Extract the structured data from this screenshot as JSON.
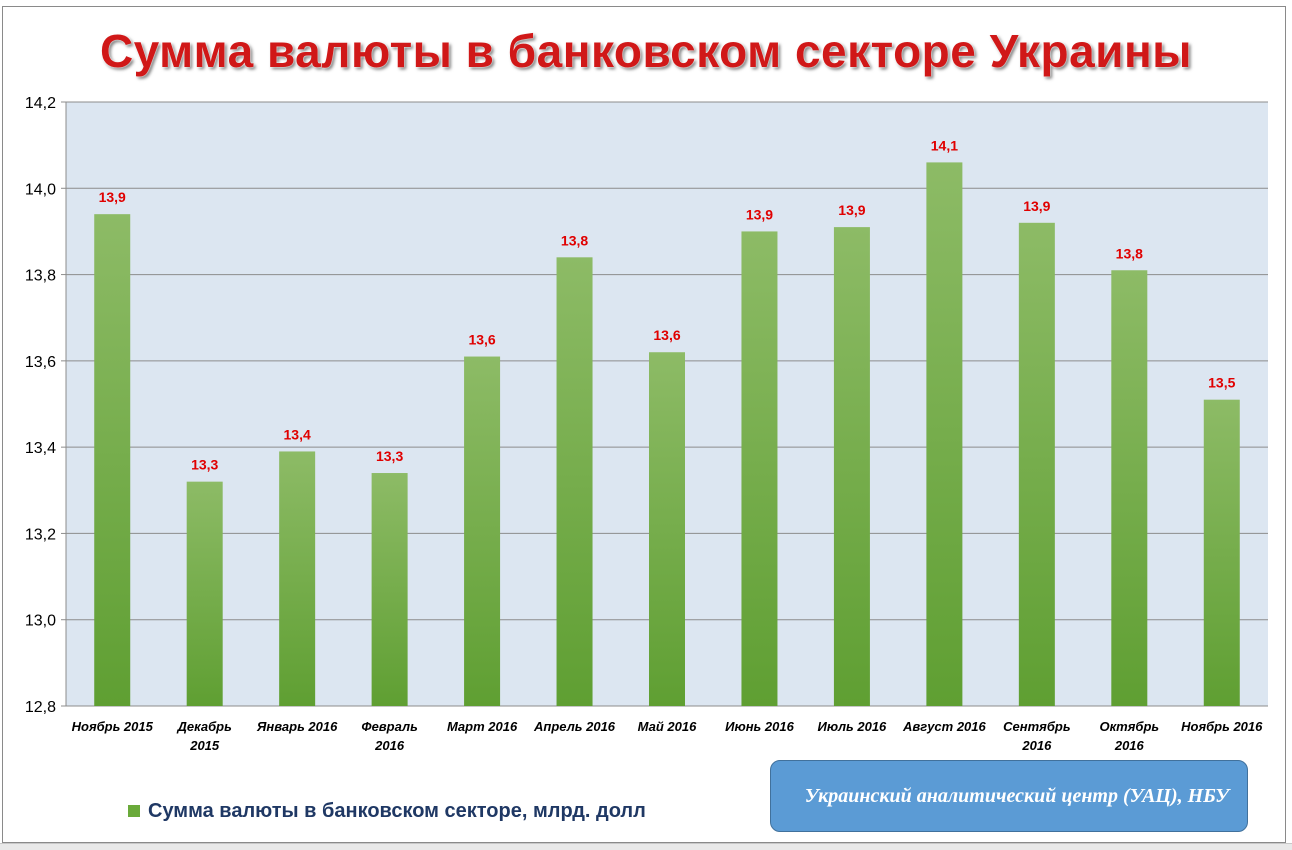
{
  "title": "Сумма валюты в банковском секторе Украины",
  "legend": {
    "label": "Сумма валюты в банковском секторе, млрд. долл"
  },
  "source": {
    "text": "Украинский аналитический центр (УАЦ), НБУ"
  },
  "colors": {
    "bar_top": "#8dbb66",
    "bar_bottom": "#5f9f32",
    "plot_background": "#dce6f1",
    "data_label": "#e00000",
    "title": "#d01818",
    "source_box": "#5b9bd5"
  },
  "chart_data": {
    "type": "bar",
    "title": "Сумма валюты в банковском секторе Украины",
    "categories": [
      "Ноябрь 2015",
      "Декабрь 2015",
      "Январь 2016",
      "Февраль 2016",
      "Март 2016",
      "Апрель 2016",
      "Май 2016",
      "Июнь 2016",
      "Июль 2016",
      "Август 2016",
      "Сентябрь 2016",
      "Октябрь 2016",
      "Ноябрь 2016"
    ],
    "category_lines": [
      [
        "Ноябрь 2015"
      ],
      [
        "Декабрь",
        "2015"
      ],
      [
        "Январь 2016"
      ],
      [
        "Февраль",
        "2016"
      ],
      [
        "Март 2016"
      ],
      [
        "Апрель 2016"
      ],
      [
        "Май 2016"
      ],
      [
        "Июнь 2016"
      ],
      [
        "Июль 2016"
      ],
      [
        "Август 2016"
      ],
      [
        "Сентябрь",
        "2016"
      ],
      [
        "Октябрь",
        "2016"
      ],
      [
        "Ноябрь 2016"
      ]
    ],
    "series": [
      {
        "name": "Сумма валюты в банковском секторе, млрд. долл",
        "values": [
          13.94,
          13.32,
          13.39,
          13.34,
          13.61,
          13.84,
          13.62,
          13.9,
          13.91,
          14.06,
          13.92,
          13.81,
          13.51
        ],
        "data_labels": [
          "13,9",
          "13,3",
          "13,4",
          "13,3",
          "13,6",
          "13,8",
          "13,6",
          "13,9",
          "13,9",
          "14,1",
          "13,9",
          "13,8",
          "13,5"
        ]
      }
    ],
    "ylim": [
      12.8,
      14.2
    ],
    "yticks": [
      "12,8",
      "13,0",
      "13,2",
      "13,4",
      "13,6",
      "13,8",
      "14,0",
      "14,2"
    ],
    "ytick_values": [
      12.8,
      13.0,
      13.2,
      13.4,
      13.6,
      13.8,
      14.0,
      14.2
    ],
    "xlabel": "",
    "ylabel": "",
    "grid": true,
    "legend_position": "bottom-left"
  }
}
